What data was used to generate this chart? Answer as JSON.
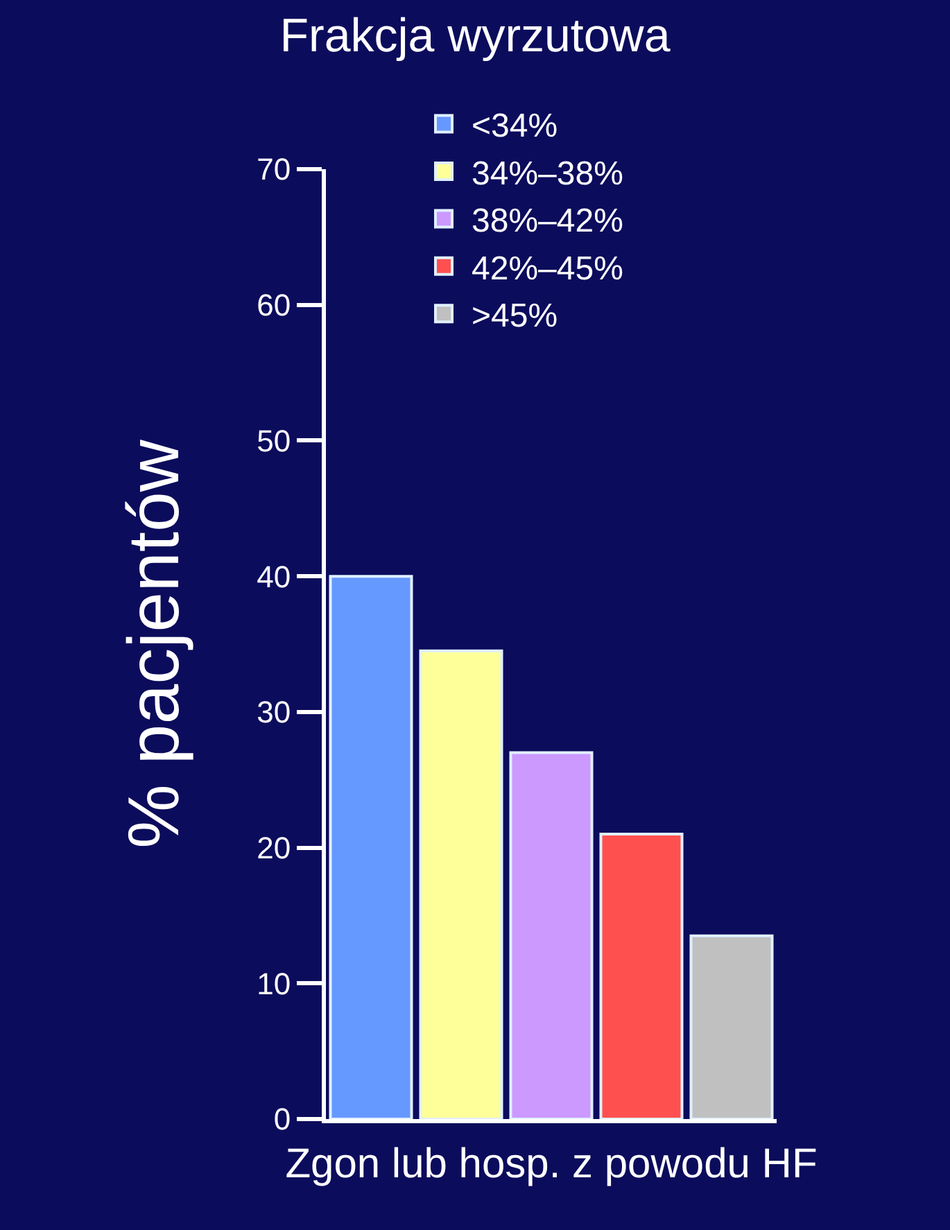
{
  "chart_data": {
    "type": "bar",
    "title": "Frakcja wyrzutowa",
    "xlabel": "Zgon lub hosp. z powodu HF",
    "ylabel": "% pacjentów",
    "categories": [
      null
    ],
    "series": [
      {
        "name": "<34%",
        "color": "#6699ff",
        "values": [
          40
        ]
      },
      {
        "name": "34%–38%",
        "color": "#ffff99",
        "values": [
          34.5
        ]
      },
      {
        "name": "38%–42%",
        "color": "#cc99ff",
        "values": [
          27
        ]
      },
      {
        "name": "42%–45%",
        "color": "#ff5050",
        "values": [
          21
        ]
      },
      {
        "name": ">45%",
        "color": "#c0c0c0",
        "values": [
          13.5
        ]
      }
    ],
    "ylim": [
      0,
      70
    ],
    "yticks": [
      0,
      10,
      20,
      30,
      40,
      50,
      60,
      70
    ],
    "grid": false,
    "legend": "top"
  }
}
